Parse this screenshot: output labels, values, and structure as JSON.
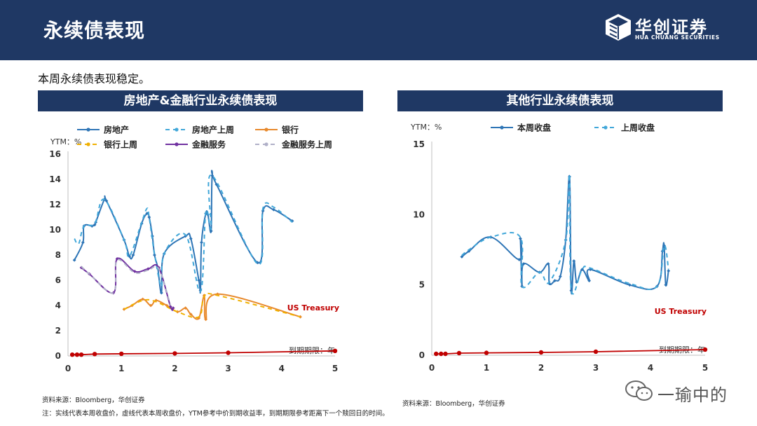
{
  "header": {
    "title": "永续债表现",
    "logo_cn": "华创证券",
    "logo_en": "HUA CHUANG SECURITIES"
  },
  "subtitle": "本周永续债表现稳定。",
  "left_panel": {
    "title": "房地产&金融行业永续债表现"
  },
  "right_panel": {
    "title": "其他行业永续债表现"
  },
  "sources": {
    "left": "资料来源：Bloomberg，华创证券",
    "right": "资料来源：Bloomberg，华创证券"
  },
  "note": "注：实线代表本周收盘价，虚线代表本周收盘价，YTM参考中价到期收益率，到期期限参考距离下一个赎回日的时间。",
  "watermark": "一瑜中的",
  "colors": {
    "navy": "#1f3864",
    "blue": "#2e75b6",
    "light_blue": "#41a7d9",
    "orange": "#e8892c",
    "purple": "#7030a0",
    "treasury": "#c00000"
  },
  "chart_data": [
    {
      "type": "line",
      "title": "房地产&金融行业永续债表现",
      "ylabel": "YTM：%",
      "xlabel": "到期期限：年",
      "xlim": [
        0,
        5
      ],
      "ylim": [
        0,
        16
      ],
      "xticks": [
        0,
        1,
        2,
        3,
        4,
        5
      ],
      "yticks": [
        0,
        2,
        4,
        6,
        8,
        10,
        12,
        14,
        16
      ],
      "annotation": "US Treasury",
      "legend_position": "top",
      "series": [
        {
          "name": "房地产",
          "style": "solid",
          "color": "#2e75b6",
          "points": [
            [
              0.12,
              7.6
            ],
            [
              0.28,
              9.0
            ],
            [
              0.3,
              10.3
            ],
            [
              0.45,
              10.3
            ],
            [
              0.5,
              10.4
            ],
            [
              0.52,
              10.6
            ],
            [
              0.68,
              12.4
            ],
            [
              0.72,
              12.3
            ],
            [
              1.05,
              9.2
            ],
            [
              1.15,
              7.9
            ],
            [
              1.22,
              8.0
            ],
            [
              1.38,
              10.5
            ],
            [
              1.48,
              11.3
            ],
            [
              1.52,
              11.0
            ],
            [
              1.58,
              9.5
            ],
            [
              1.62,
              8.0
            ],
            [
              1.68,
              7.0
            ],
            [
              1.75,
              5.0
            ],
            [
              1.8,
              8.1
            ],
            [
              2.2,
              9.5
            ],
            [
              2.3,
              9.3
            ],
            [
              2.45,
              6.0
            ],
            [
              2.48,
              5.2
            ],
            [
              2.5,
              9.0
            ],
            [
              2.58,
              11.3
            ],
            [
              2.62,
              11.2
            ],
            [
              2.68,
              9.9
            ],
            [
              2.7,
              14.3
            ],
            [
              2.78,
              13.6
            ],
            [
              3.55,
              7.4
            ],
            [
              3.65,
              11.5
            ],
            [
              3.85,
              11.6
            ],
            [
              4.2,
              10.7
            ]
          ]
        },
        {
          "name": "房地产上周",
          "style": "dashed",
          "color": "#41a7d9",
          "points": [
            [
              0.12,
              9.3
            ],
            [
              0.2,
              8.9
            ],
            [
              0.3,
              10.3
            ],
            [
              0.5,
              10.5
            ],
            [
              0.68,
              12.4
            ],
            [
              1.05,
              9.2
            ],
            [
              1.15,
              7.9
            ],
            [
              1.38,
              10.6
            ],
            [
              1.48,
              11.7
            ],
            [
              1.52,
              11.0
            ],
            [
              1.62,
              8.1
            ],
            [
              1.75,
              5.5
            ],
            [
              1.8,
              8.1
            ],
            [
              2.2,
              9.6
            ],
            [
              2.48,
              5.1
            ],
            [
              2.58,
              11.4
            ],
            [
              2.68,
              10.1
            ],
            [
              2.7,
              14.3
            ],
            [
              3.55,
              7.3
            ],
            [
              3.65,
              11.7
            ],
            [
              3.85,
              11.8
            ],
            [
              4.2,
              10.6
            ]
          ]
        },
        {
          "name": "银行",
          "style": "solid",
          "color": "#e8892c",
          "points": [
            [
              1.05,
              3.7
            ],
            [
              1.2,
              4.0
            ],
            [
              1.4,
              4.5
            ],
            [
              1.55,
              4.0
            ],
            [
              1.65,
              4.4
            ],
            [
              1.85,
              4.0
            ],
            [
              2.05,
              3.5
            ],
            [
              2.2,
              3.8
            ],
            [
              2.3,
              3.3
            ],
            [
              2.45,
              3.0
            ],
            [
              2.55,
              4.8
            ],
            [
              2.58,
              2.9
            ],
            [
              2.8,
              4.9
            ],
            [
              4.35,
              3.1
            ]
          ]
        },
        {
          "name": "银行上周",
          "style": "dashed",
          "color": "#f0b000",
          "points": [
            [
              1.05,
              3.7
            ],
            [
              1.4,
              4.4
            ],
            [
              1.65,
              4.3
            ],
            [
              2.05,
              3.5
            ],
            [
              2.45,
              3.1
            ],
            [
              2.55,
              4.7
            ],
            [
              2.8,
              4.8
            ],
            [
              4.35,
              3.1
            ]
          ]
        },
        {
          "name": "金融服务",
          "style": "solid",
          "color": "#7030a0",
          "points": [
            [
              0.25,
              7.0
            ],
            [
              0.4,
              6.5
            ],
            [
              0.85,
              5.0
            ],
            [
              0.92,
              7.7
            ],
            [
              1.25,
              6.7
            ],
            [
              1.5,
              6.9
            ],
            [
              1.7,
              7.0
            ],
            [
              1.92,
              3.9
            ],
            [
              1.97,
              3.8
            ]
          ]
        },
        {
          "name": "金融服务上周",
          "style": "dashed",
          "color": "#b0b0c8",
          "points": [
            [
              0.25,
              7.1
            ],
            [
              0.4,
              6.5
            ],
            [
              0.85,
              5.0
            ],
            [
              0.92,
              7.6
            ],
            [
              1.25,
              6.6
            ],
            [
              1.5,
              6.8
            ],
            [
              1.7,
              6.9
            ],
            [
              1.92,
              4.0
            ]
          ]
        },
        {
          "name": "US Treasury",
          "style": "solid",
          "color": "#c00000",
          "points": [
            [
              0.08,
              0.1
            ],
            [
              0.17,
              0.1
            ],
            [
              0.25,
              0.1
            ],
            [
              0.5,
              0.15
            ],
            [
              1.0,
              0.17
            ],
            [
              2.0,
              0.2
            ],
            [
              3.0,
              0.25
            ],
            [
              5.0,
              0.4
            ]
          ]
        }
      ]
    },
    {
      "type": "line",
      "title": "其他行业永续债表现",
      "ylabel": "YTM：%",
      "xlabel": "到期期限：年",
      "xlim": [
        0,
        5
      ],
      "ylim": [
        0,
        15
      ],
      "xticks": [
        0,
        1,
        2,
        3,
        4,
        5
      ],
      "yticks": [
        0,
        5,
        10,
        15
      ],
      "annotation": "US Treasury",
      "legend_position": "top",
      "series": [
        {
          "name": "本周收盘",
          "style": "solid",
          "color": "#2e75b6",
          "points": [
            [
              0.55,
              7.0
            ],
            [
              0.68,
              7.4
            ],
            [
              1.08,
              8.4
            ],
            [
              1.6,
              6.8
            ],
            [
              1.62,
              8.3
            ],
            [
              1.65,
              4.9
            ],
            [
              1.68,
              6.5
            ],
            [
              1.97,
              5.9
            ],
            [
              2.13,
              6.5
            ],
            [
              2.15,
              5.1
            ],
            [
              2.25,
              5.3
            ],
            [
              2.35,
              5.6
            ],
            [
              2.45,
              8.2
            ],
            [
              2.52,
              12.7
            ],
            [
              2.55,
              4.6
            ],
            [
              2.6,
              6.7
            ],
            [
              2.65,
              5.2
            ],
            [
              2.75,
              6.1
            ],
            [
              2.88,
              5.3
            ],
            [
              2.9,
              6.1
            ],
            [
              3.62,
              5.0
            ],
            [
              4.12,
              4.9
            ],
            [
              4.22,
              7.4
            ],
            [
              4.25,
              7.8
            ],
            [
              4.28,
              5.0
            ],
            [
              4.33,
              6.0
            ]
          ]
        },
        {
          "name": "上周收盘",
          "style": "dashed",
          "color": "#41a7d9",
          "points": [
            [
              0.55,
              7.1
            ],
            [
              0.68,
              7.5
            ],
            [
              1.08,
              8.4
            ],
            [
              1.62,
              8.4
            ],
            [
              1.65,
              4.9
            ],
            [
              1.97,
              5.9
            ],
            [
              2.15,
              5.2
            ],
            [
              2.45,
              8.2
            ],
            [
              2.52,
              12.8
            ],
            [
              2.55,
              4.7
            ],
            [
              2.75,
              6.1
            ],
            [
              2.9,
              6.2
            ],
            [
              3.62,
              5.1
            ],
            [
              4.12,
              4.9
            ],
            [
              4.25,
              7.8
            ],
            [
              4.33,
              6.1
            ]
          ]
        },
        {
          "name": "US Treasury",
          "style": "solid",
          "color": "#c00000",
          "points": [
            [
              0.08,
              0.1
            ],
            [
              0.17,
              0.1
            ],
            [
              0.25,
              0.1
            ],
            [
              0.5,
              0.15
            ],
            [
              1.0,
              0.17
            ],
            [
              2.0,
              0.2
            ],
            [
              3.0,
              0.25
            ],
            [
              5.0,
              0.4
            ]
          ]
        }
      ]
    }
  ]
}
